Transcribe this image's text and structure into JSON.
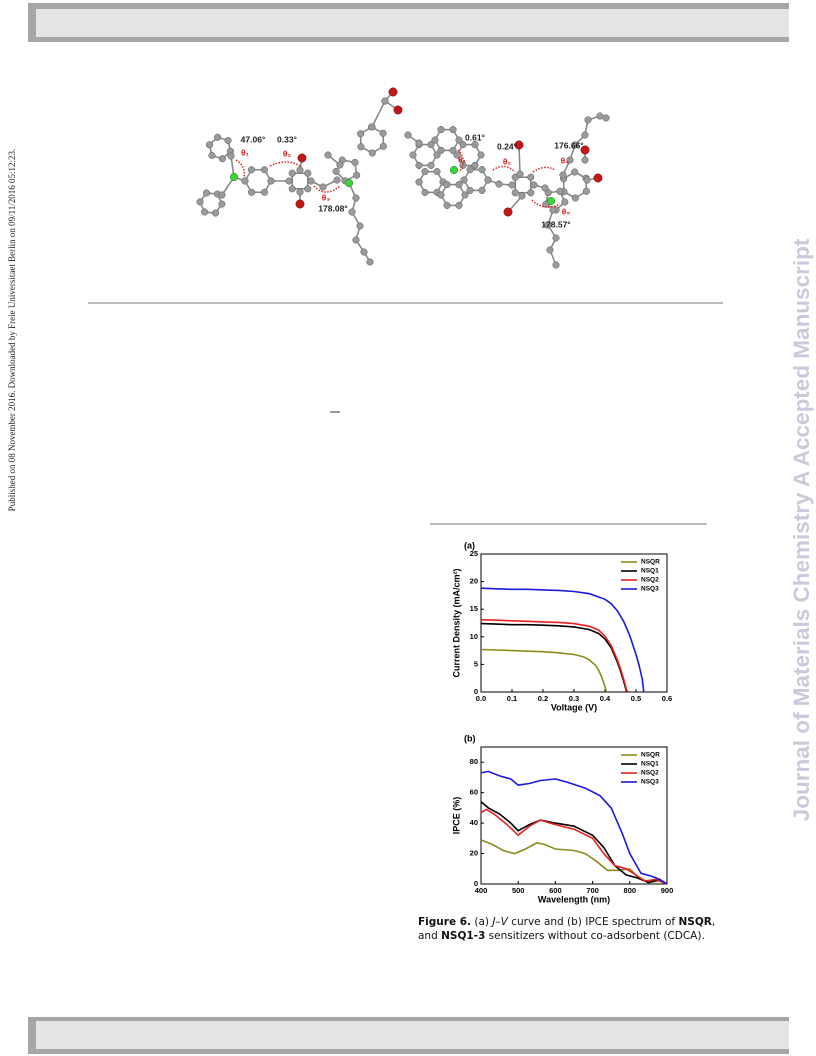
{
  "sidebar": "Published on 08 November 2016. Downloaded by Freie Universitaet Berlin on 09/11/2016 05:12:23.",
  "watermark": "Journal of Materials Chemistry A Accepted Manuscript",
  "structure_figure": {
    "left": {
      "angles": [
        "47.06°",
        "0.33°",
        "178.08°"
      ],
      "thetas": [
        "θ₁",
        "θ₂",
        "θ₃"
      ]
    },
    "right": {
      "angles": [
        "0.61°",
        "0.24°",
        "176.66°",
        "178.57°"
      ],
      "thetas": [
        "θ₁",
        "θ₂",
        "θ₄",
        "θ₅"
      ]
    }
  },
  "chart_data": [
    {
      "type": "line",
      "panel_label": "(a)",
      "xlabel": "Voltage (V)",
      "ylabel": "Current Density (mA/cm²)",
      "xlim": [
        0,
        0.6
      ],
      "xticks": [
        {
          "value": 0,
          "label": "0.0"
        },
        0.1,
        0.2,
        0.3,
        0.4,
        0.5,
        0.6
      ],
      "ylim": [
        0,
        25
      ],
      "yticks": [
        0,
        5,
        10,
        15,
        20,
        25
      ],
      "legend": "upper right",
      "series": [
        {
          "name": "NSQR",
          "color": "#8c8c1e",
          "x": [
            0,
            0.05,
            0.1,
            0.15,
            0.2,
            0.25,
            0.3,
            0.33,
            0.35,
            0.37,
            0.38,
            0.39,
            0.4,
            0.405
          ],
          "values": [
            7.7,
            7.6,
            7.5,
            7.4,
            7.3,
            7.1,
            6.8,
            6.4,
            5.8,
            4.8,
            3.9,
            2.6,
            1.0,
            0
          ]
        },
        {
          "name": "NSQ1",
          "color": "#000000",
          "x": [
            0,
            0.05,
            0.1,
            0.15,
            0.2,
            0.25,
            0.3,
            0.35,
            0.38,
            0.4,
            0.42,
            0.44,
            0.45,
            0.46,
            0.47
          ],
          "values": [
            12.4,
            12.3,
            12.2,
            12.2,
            12.1,
            12.0,
            11.8,
            11.3,
            10.6,
            9.6,
            8.0,
            5.4,
            3.8,
            2.0,
            0
          ]
        },
        {
          "name": "NSQ2",
          "color": "#e8201e",
          "x": [
            0,
            0.05,
            0.1,
            0.15,
            0.2,
            0.25,
            0.3,
            0.35,
            0.38,
            0.4,
            0.42,
            0.44,
            0.45,
            0.46,
            0.47,
            0.475
          ],
          "values": [
            13.1,
            13.0,
            12.9,
            12.8,
            12.7,
            12.6,
            12.4,
            11.9,
            11.2,
            10.1,
            8.4,
            5.8,
            4.2,
            2.4,
            0.3,
            0
          ]
        },
        {
          "name": "NSQ3",
          "color": "#1a1ae0",
          "x": [
            0,
            0.05,
            0.1,
            0.15,
            0.2,
            0.25,
            0.3,
            0.35,
            0.4,
            0.42,
            0.44,
            0.46,
            0.48,
            0.5,
            0.51,
            0.52,
            0.525
          ],
          "values": [
            18.8,
            18.7,
            18.6,
            18.6,
            18.5,
            18.4,
            18.2,
            17.8,
            16.8,
            16.0,
            14.7,
            12.8,
            10.2,
            6.8,
            4.8,
            2.4,
            0
          ]
        }
      ]
    },
    {
      "type": "line",
      "panel_label": "(b)",
      "xlabel": "Wavelength (nm)",
      "ylabel": "IPCE (%)",
      "xlim": [
        400,
        900
      ],
      "xticks": [
        400,
        500,
        600,
        700,
        800,
        900
      ],
      "ylim": [
        0,
        90
      ],
      "yticks": [
        0,
        20,
        40,
        60,
        80
      ],
      "legend": "upper right",
      "series": [
        {
          "name": "NSQR",
          "color": "#8c8c1e",
          "x": [
            400,
            430,
            460,
            490,
            520,
            550,
            570,
            600,
            650,
            680,
            710,
            740,
            770,
            800,
            820,
            850,
            880,
            900
          ],
          "values": [
            29,
            26,
            22,
            20,
            23,
            27,
            26,
            23,
            22,
            20,
            15,
            9,
            9,
            10,
            5,
            1,
            2,
            0
          ]
        },
        {
          "name": "NSQ1",
          "color": "#000000",
          "x": [
            400,
            420,
            450,
            480,
            500,
            530,
            560,
            600,
            650,
            700,
            730,
            760,
            790,
            820,
            850,
            880,
            900
          ],
          "values": [
            54,
            50,
            46,
            40,
            35,
            39,
            42,
            40,
            38,
            32,
            24,
            12,
            6,
            4,
            1,
            3,
            0
          ]
        },
        {
          "name": "NSQ2",
          "color": "#e8201e",
          "x": [
            400,
            415,
            440,
            470,
            500,
            530,
            560,
            600,
            650,
            700,
            730,
            760,
            790,
            810,
            840,
            870,
            900
          ],
          "values": [
            47,
            49,
            45,
            39,
            32,
            38,
            42,
            39,
            36,
            30,
            20,
            12,
            10,
            7,
            2,
            3,
            0
          ]
        },
        {
          "name": "NSQ3",
          "color": "#1a1ae0",
          "x": [
            400,
            420,
            450,
            480,
            500,
            530,
            560,
            600,
            630,
            680,
            720,
            750,
            780,
            800,
            830,
            860,
            880,
            900
          ],
          "values": [
            73,
            74,
            71,
            69,
            65,
            66,
            68,
            69,
            67,
            63,
            58,
            50,
            33,
            20,
            7,
            5,
            3,
            0
          ]
        }
      ]
    }
  ],
  "caption": {
    "runs": [
      {
        "text": "Figure 6.",
        "style": "bold"
      },
      {
        "text": " (a) ",
        "style": "normal"
      },
      {
        "text": "J–V",
        "style": "italic"
      },
      {
        "text": " curve and (b) IPCE spectrum of ",
        "style": "normal"
      },
      {
        "text": "NSQR",
        "style": "bold"
      },
      {
        "text": ", and ",
        "style": "normal"
      },
      {
        "text": "NSQ1-3",
        "style": "bold"
      },
      {
        "text": " sensitizers without co-adsorbent (CDCA).",
        "style": "normal"
      }
    ]
  }
}
